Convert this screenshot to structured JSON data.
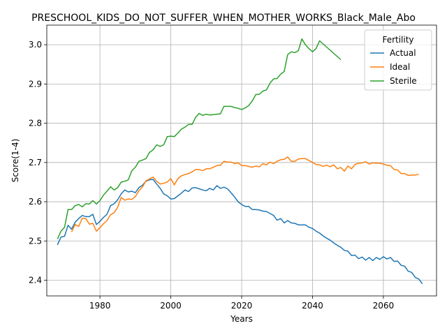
{
  "chart_data": {
    "type": "line",
    "title": "PRESCHOOL_KIDS_DO_NOT_SUFFER_WHEN_MOTHER_WORKS_Black_Male_Abo",
    "xlabel": "Years",
    "ylabel": "Score(1-4)",
    "xlim": [
      1965,
      2075
    ],
    "ylim": [
      2.36,
      3.05
    ],
    "xticks": [
      1980,
      2000,
      2020,
      2040,
      2060
    ],
    "yticks": [
      2.4,
      2.5,
      2.6,
      2.7,
      2.8,
      2.9,
      3.0
    ],
    "grid": true,
    "legend": {
      "title": "Fertility",
      "placement": "top-right"
    },
    "series": [
      {
        "name": "Actual",
        "color": "#1f77b4",
        "points": [
          [
            1968,
            2.49
          ],
          [
            1969,
            2.51
          ],
          [
            1970,
            2.512
          ],
          [
            1971,
            2.54
          ],
          [
            1972,
            2.53
          ],
          [
            1973,
            2.548
          ],
          [
            1974,
            2.557
          ],
          [
            1975,
            2.565
          ],
          [
            1976,
            2.562
          ],
          [
            1977,
            2.562
          ],
          [
            1978,
            2.568
          ],
          [
            1979,
            2.542
          ],
          [
            1980,
            2.55
          ],
          [
            1981,
            2.56
          ],
          [
            1982,
            2.568
          ],
          [
            1983,
            2.59
          ],
          [
            1984,
            2.595
          ],
          [
            1985,
            2.605
          ],
          [
            1986,
            2.62
          ],
          [
            1987,
            2.63
          ],
          [
            1988,
            2.625
          ],
          [
            1989,
            2.627
          ],
          [
            1990,
            2.623
          ],
          [
            1991,
            2.636
          ],
          [
            1992,
            2.642
          ],
          [
            1993,
            2.652
          ],
          [
            1994,
            2.656
          ],
          [
            1995,
            2.657
          ],
          [
            1996,
            2.645
          ],
          [
            1997,
            2.634
          ],
          [
            1998,
            2.62
          ],
          [
            1999,
            2.615
          ],
          [
            2000,
            2.607
          ],
          [
            2001,
            2.608
          ],
          [
            2002,
            2.615
          ],
          [
            2003,
            2.622
          ],
          [
            2004,
            2.63
          ],
          [
            2005,
            2.626
          ],
          [
            2006,
            2.635
          ],
          [
            2007,
            2.636
          ],
          [
            2008,
            2.633
          ],
          [
            2009,
            2.63
          ],
          [
            2010,
            2.628
          ],
          [
            2011,
            2.634
          ],
          [
            2012,
            2.63
          ],
          [
            2013,
            2.641
          ],
          [
            2014,
            2.634
          ],
          [
            2015,
            2.637
          ],
          [
            2016,
            2.633
          ],
          [
            2017,
            2.623
          ],
          [
            2018,
            2.612
          ],
          [
            2019,
            2.6
          ],
          [
            2020,
            2.593
          ],
          [
            2021,
            2.588
          ],
          [
            2022,
            2.588
          ],
          [
            2023,
            2.58
          ],
          [
            2024,
            2.58
          ],
          [
            2025,
            2.579
          ],
          [
            2026,
            2.576
          ],
          [
            2027,
            2.575
          ],
          [
            2028,
            2.57
          ],
          [
            2029,
            2.565
          ],
          [
            2030,
            2.553
          ],
          [
            2031,
            2.557
          ],
          [
            2032,
            2.546
          ],
          [
            2033,
            2.552
          ],
          [
            2034,
            2.546
          ],
          [
            2035,
            2.545
          ],
          [
            2036,
            2.541
          ],
          [
            2037,
            2.541
          ],
          [
            2038,
            2.541
          ],
          [
            2039,
            2.535
          ],
          [
            2040,
            2.532
          ],
          [
            2041,
            2.525
          ],
          [
            2042,
            2.52
          ],
          [
            2043,
            2.513
          ],
          [
            2044,
            2.507
          ],
          [
            2045,
            2.502
          ],
          [
            2046,
            2.495
          ],
          [
            2047,
            2.489
          ],
          [
            2048,
            2.484
          ],
          [
            2049,
            2.476
          ],
          [
            2050,
            2.474
          ],
          [
            2051,
            2.463
          ],
          [
            2052,
            2.464
          ],
          [
            2053,
            2.455
          ],
          [
            2054,
            2.459
          ],
          [
            2055,
            2.451
          ],
          [
            2056,
            2.458
          ],
          [
            2057,
            2.45
          ],
          [
            2058,
            2.458
          ],
          [
            2059,
            2.453
          ],
          [
            2060,
            2.46
          ],
          [
            2061,
            2.454
          ],
          [
            2062,
            2.458
          ],
          [
            2063,
            2.448
          ],
          [
            2064,
            2.449
          ],
          [
            2065,
            2.438
          ],
          [
            2066,
            2.436
          ],
          [
            2067,
            2.423
          ],
          [
            2068,
            2.42
          ],
          [
            2069,
            2.407
          ],
          [
            2070,
            2.403
          ],
          [
            2071,
            2.391
          ]
        ]
      },
      {
        "name": "Ideal",
        "color": "#ff7f0e",
        "points": [
          [
            1972,
            2.523
          ],
          [
            1973,
            2.542
          ],
          [
            1974,
            2.537
          ],
          [
            1975,
            2.558
          ],
          [
            1976,
            2.557
          ],
          [
            1977,
            2.543
          ],
          [
            1978,
            2.545
          ],
          [
            1979,
            2.525
          ],
          [
            1980,
            2.534
          ],
          [
            1981,
            2.544
          ],
          [
            1982,
            2.552
          ],
          [
            1983,
            2.567
          ],
          [
            1984,
            2.572
          ],
          [
            1985,
            2.586
          ],
          [
            1986,
            2.611
          ],
          [
            1987,
            2.604
          ],
          [
            1988,
            2.607
          ],
          [
            1989,
            2.606
          ],
          [
            1990,
            2.613
          ],
          [
            1991,
            2.628
          ],
          [
            1992,
            2.638
          ],
          [
            1993,
            2.653
          ],
          [
            1994,
            2.658
          ],
          [
            1995,
            2.663
          ],
          [
            1996,
            2.652
          ],
          [
            1997,
            2.645
          ],
          [
            1998,
            2.647
          ],
          [
            1999,
            2.65
          ],
          [
            2000,
            2.659
          ],
          [
            2001,
            2.643
          ],
          [
            2002,
            2.659
          ],
          [
            2003,
            2.666
          ],
          [
            2004,
            2.669
          ],
          [
            2005,
            2.672
          ],
          [
            2006,
            2.676
          ],
          [
            2007,
            2.682
          ],
          [
            2008,
            2.682
          ],
          [
            2009,
            2.679
          ],
          [
            2010,
            2.684
          ],
          [
            2011,
            2.684
          ],
          [
            2012,
            2.688
          ],
          [
            2013,
            2.692
          ],
          [
            2014,
            2.693
          ],
          [
            2015,
            2.703
          ],
          [
            2016,
            2.701
          ],
          [
            2017,
            2.701
          ],
          [
            2018,
            2.697
          ],
          [
            2019,
            2.699
          ],
          [
            2020,
            2.692
          ],
          [
            2021,
            2.692
          ],
          [
            2022,
            2.69
          ],
          [
            2023,
            2.688
          ],
          [
            2024,
            2.691
          ],
          [
            2025,
            2.689
          ],
          [
            2026,
            2.697
          ],
          [
            2027,
            2.694
          ],
          [
            2028,
            2.701
          ],
          [
            2029,
            2.697
          ],
          [
            2030,
            2.703
          ],
          [
            2031,
            2.707
          ],
          [
            2032,
            2.708
          ],
          [
            2033,
            2.714
          ],
          [
            2034,
            2.703
          ],
          [
            2035,
            2.703
          ],
          [
            2036,
            2.709
          ],
          [
            2037,
            2.71
          ],
          [
            2038,
            2.71
          ],
          [
            2039,
            2.705
          ],
          [
            2040,
            2.7
          ],
          [
            2041,
            2.695
          ],
          [
            2042,
            2.694
          ],
          [
            2043,
            2.69
          ],
          [
            2044,
            2.693
          ],
          [
            2045,
            2.689
          ],
          [
            2046,
            2.694
          ],
          [
            2047,
            2.684
          ],
          [
            2048,
            2.687
          ],
          [
            2049,
            2.678
          ],
          [
            2050,
            2.691
          ],
          [
            2051,
            2.684
          ],
          [
            2052,
            2.695
          ],
          [
            2053,
            2.698
          ],
          [
            2054,
            2.699
          ],
          [
            2055,
            2.702
          ],
          [
            2056,
            2.696
          ],
          [
            2057,
            2.699
          ],
          [
            2058,
            2.698
          ],
          [
            2059,
            2.698
          ],
          [
            2060,
            2.696
          ],
          [
            2061,
            2.693
          ],
          [
            2062,
            2.692
          ],
          [
            2063,
            2.682
          ],
          [
            2064,
            2.681
          ],
          [
            2065,
            2.672
          ],
          [
            2066,
            2.672
          ],
          [
            2067,
            2.667
          ],
          [
            2068,
            2.668
          ],
          [
            2069,
            2.668
          ],
          [
            2070,
            2.67
          ]
        ]
      },
      {
        "name": "Sterile",
        "color": "#2ca02c",
        "points": [
          [
            1968,
            2.505
          ],
          [
            1969,
            2.525
          ],
          [
            1970,
            2.535
          ],
          [
            1971,
            2.58
          ],
          [
            1972,
            2.58
          ],
          [
            1973,
            2.59
          ],
          [
            1974,
            2.593
          ],
          [
            1975,
            2.587
          ],
          [
            1976,
            2.595
          ],
          [
            1977,
            2.594
          ],
          [
            1978,
            2.603
          ],
          [
            1979,
            2.594
          ],
          [
            1980,
            2.603
          ],
          [
            1981,
            2.617
          ],
          [
            1982,
            2.627
          ],
          [
            1983,
            2.638
          ],
          [
            1984,
            2.63
          ],
          [
            1985,
            2.636
          ],
          [
            1986,
            2.65
          ],
          [
            1987,
            2.652
          ],
          [
            1988,
            2.656
          ],
          [
            1989,
            2.679
          ],
          [
            1990,
            2.688
          ],
          [
            1991,
            2.703
          ],
          [
            1992,
            2.706
          ],
          [
            1993,
            2.71
          ],
          [
            1994,
            2.726
          ],
          [
            1995,
            2.732
          ],
          [
            1996,
            2.745
          ],
          [
            1997,
            2.741
          ],
          [
            1998,
            2.745
          ],
          [
            1999,
            2.766
          ],
          [
            2000,
            2.767
          ],
          [
            2001,
            2.766
          ],
          [
            2002,
            2.775
          ],
          [
            2003,
            2.785
          ],
          [
            2004,
            2.79
          ],
          [
            2005,
            2.797
          ],
          [
            2006,
            2.797
          ],
          [
            2007,
            2.815
          ],
          [
            2008,
            2.825
          ],
          [
            2009,
            2.82
          ],
          [
            2010,
            2.823
          ],
          [
            2011,
            2.821
          ],
          [
            2012,
            2.822
          ],
          [
            2013,
            2.823
          ],
          [
            2014,
            2.824
          ],
          [
            2015,
            2.843
          ],
          [
            2016,
            2.843
          ],
          [
            2017,
            2.843
          ],
          [
            2018,
            2.84
          ],
          [
            2019,
            2.838
          ],
          [
            2020,
            2.835
          ],
          [
            2021,
            2.839
          ],
          [
            2022,
            2.845
          ],
          [
            2023,
            2.857
          ],
          [
            2024,
            2.873
          ],
          [
            2025,
            2.874
          ],
          [
            2026,
            2.882
          ],
          [
            2027,
            2.885
          ],
          [
            2028,
            2.902
          ],
          [
            2029,
            2.913
          ],
          [
            2030,
            2.914
          ],
          [
            2031,
            2.925
          ],
          [
            2032,
            2.932
          ],
          [
            2033,
            2.975
          ],
          [
            2034,
            2.982
          ],
          [
            2035,
            2.98
          ],
          [
            2036,
            2.985
          ],
          [
            2037,
            3.015
          ],
          [
            2038,
            3.0
          ],
          [
            2039,
            2.99
          ],
          [
            2040,
            2.982
          ],
          [
            2041,
            2.99
          ],
          [
            2042,
            3.01
          ],
          [
            2048,
            2.962
          ]
        ]
      }
    ]
  }
}
